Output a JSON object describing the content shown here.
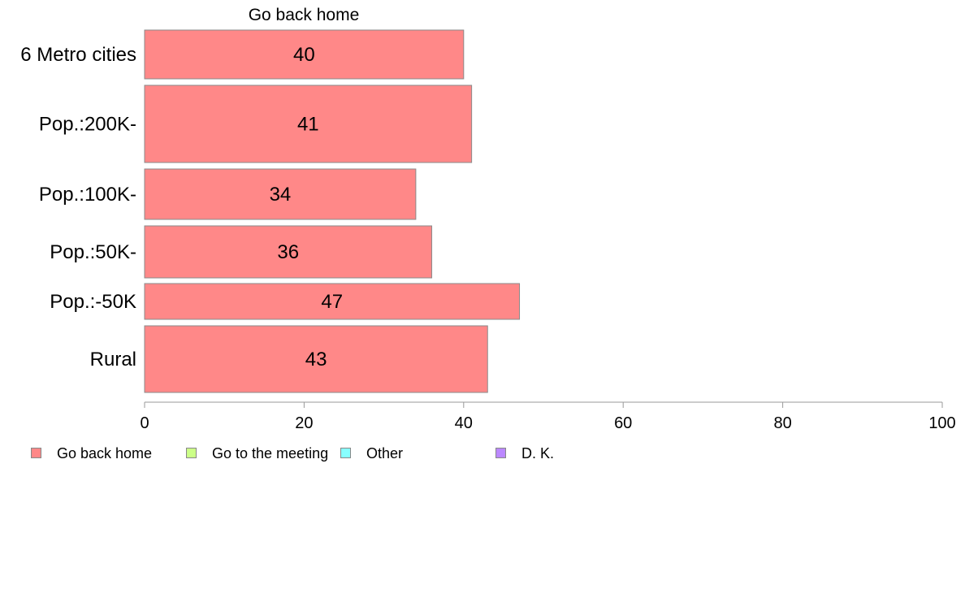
{
  "chart_data": {
    "type": "bar",
    "orientation": "horizontal",
    "title": "Go back home",
    "categories": [
      "6 Metro cities",
      "Pop.:200K-",
      "Pop.:100K-",
      "Pop.:50K-",
      "Pop.:-50K",
      "Rural"
    ],
    "series": [
      {
        "name": "Go back home",
        "values": [
          40,
          41,
          34,
          36,
          47,
          43
        ]
      }
    ],
    "xlim": [
      0,
      100
    ],
    "x_ticks": [
      "0",
      "20",
      "40",
      "60",
      "80",
      "100"
    ],
    "data_labels": [
      "40",
      "41",
      "34",
      "36",
      "47",
      "43"
    ],
    "grid": false,
    "legend": {
      "placement": "bottom-left",
      "entries": [
        {
          "label": "Go back home",
          "color": "#ff8888"
        },
        {
          "label": "Go to the meeting",
          "color": "#ccff88"
        },
        {
          "label": "Other",
          "color": "#88ffff"
        },
        {
          "label": "D. K.",
          "color": "#bb88ff"
        }
      ]
    },
    "bar_color": "#ff8888"
  }
}
